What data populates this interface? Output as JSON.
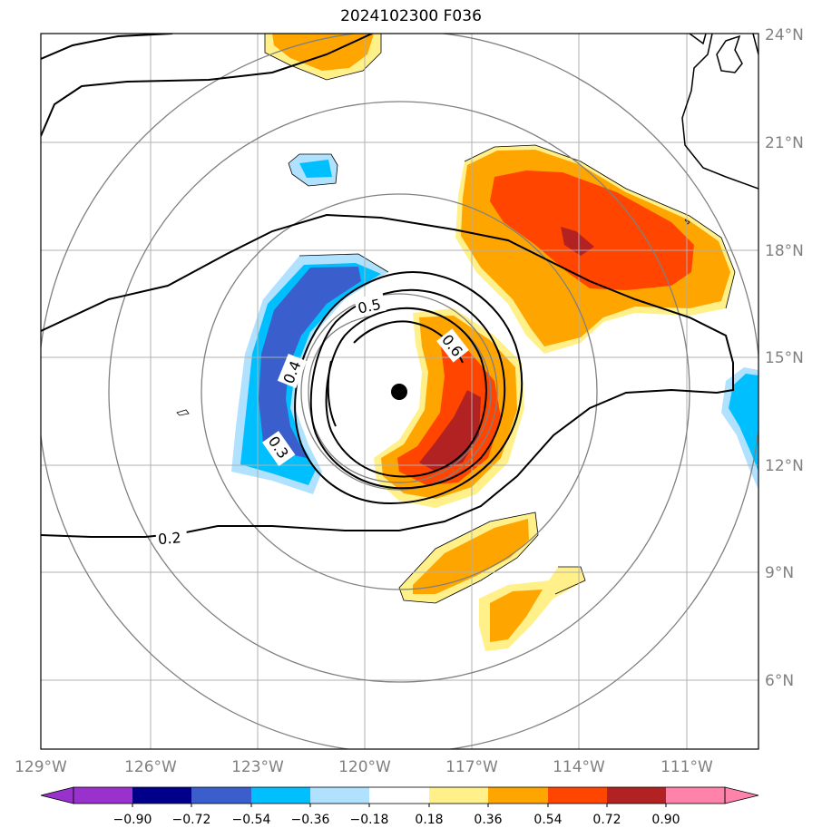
{
  "title": "2024102300 F036",
  "map": {
    "lon_range": [
      -129,
      -109
    ],
    "lat_range": [
      4,
      24
    ],
    "lon_ticks": [
      "129°W",
      "126°W",
      "123°W",
      "120°W",
      "117°W",
      "114°W",
      "111°W"
    ],
    "lat_ticks": [
      "24°N",
      "21°N",
      "18°N",
      "15°N",
      "12°N",
      "9°N",
      "6°N"
    ],
    "storm_center": {
      "lon": -118.0,
      "lat": 14.0
    },
    "range_rings": "concentric circles around storm center",
    "contour_labels": [
      "0.5",
      "0.6",
      "0.4",
      "0.3",
      "0.2"
    ],
    "colors": {
      "purple": "#9932cc",
      "navy": "#00008b",
      "royal": "#3a5fcd",
      "cyan": "#00bfff",
      "lightblue": "#b0e2ff",
      "white": "#ffffff",
      "yellow": "#fff08a",
      "orange": "#ffa500",
      "redorange": "#ff4500",
      "darkred": "#b22222",
      "pink": "#ff82ab"
    }
  },
  "colorbar": {
    "labels": [
      "−0.90",
      "−0.72",
      "−0.54",
      "−0.36",
      "−0.18",
      "0.18",
      "0.36",
      "0.54",
      "0.72",
      "0.90"
    ]
  }
}
